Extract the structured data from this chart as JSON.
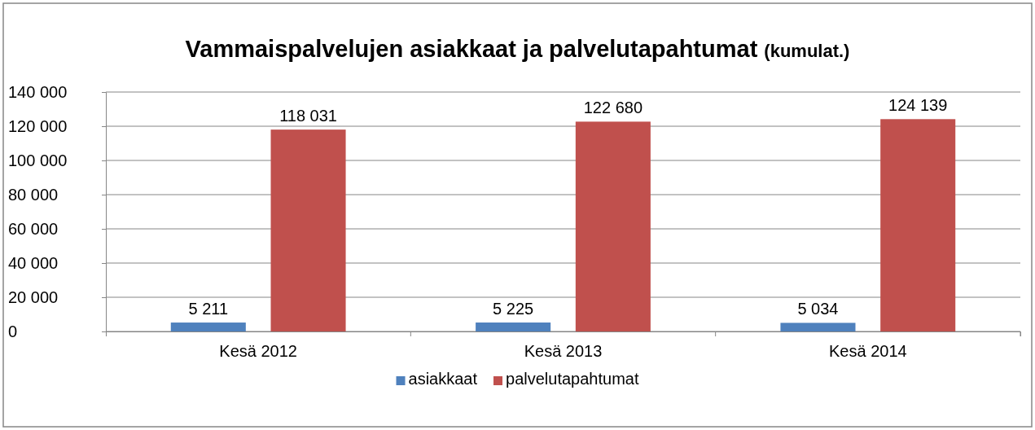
{
  "chart_data": {
    "type": "bar",
    "title": "Vammaispalvelujen asiakkaat ja palvelutapahtumat",
    "subtitle": "(kumulat.)",
    "categories": [
      "Kesä 2012",
      "Kesä 2013",
      "Kesä 2014"
    ],
    "series": [
      {
        "name": "asiakkaat",
        "color": "#4f81bd",
        "values": [
          5211,
          5225,
          5034
        ],
        "value_labels": [
          "5 211",
          "5 225",
          "5 034"
        ]
      },
      {
        "name": "palvelutapahtumat",
        "color": "#c0504d",
        "values": [
          118031,
          122680,
          124139
        ],
        "value_labels": [
          "118 031",
          "122 680",
          "124 139"
        ]
      }
    ],
    "ylim": [
      0,
      140000
    ],
    "yticks": [
      {
        "value": 0,
        "label": "0"
      },
      {
        "value": 20000,
        "label": "20 000"
      },
      {
        "value": 40000,
        "label": "40 000"
      },
      {
        "value": 60000,
        "label": "60 000"
      },
      {
        "value": 80000,
        "label": "80 000"
      },
      {
        "value": 100000,
        "label": "100 000"
      },
      {
        "value": 120000,
        "label": "120 000"
      },
      {
        "value": 140000,
        "label": "140 000"
      }
    ],
    "grid": "y",
    "legend": "bottom"
  }
}
